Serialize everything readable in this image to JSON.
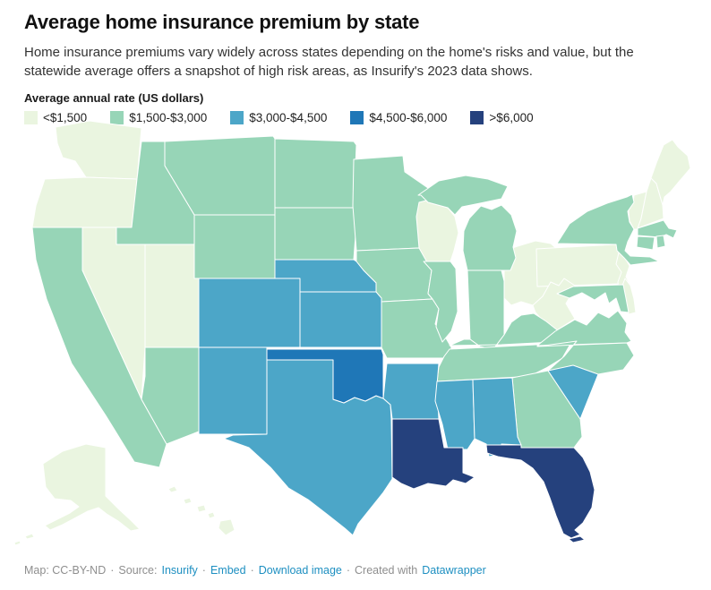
{
  "header": {
    "title": "Average home insurance premium by state",
    "subtitle": "Home insurance premiums vary widely across states depending on the home's risks and value, but the statewide average offers a snapshot of high risk areas, as Insurify's 2023 data shows."
  },
  "legend": {
    "title": "Average annual rate (US dollars)",
    "items": [
      {
        "label": "<$1,500",
        "color": "#eaf5e0"
      },
      {
        "label": "$1,500-$3,000",
        "color": "#97d5b7"
      },
      {
        "label": "$3,000-$4,500",
        "color": "#4ca6c8"
      },
      {
        "label": "$4,500-$6,000",
        "color": "#1f77b7"
      },
      {
        "label": ">$6,000",
        "color": "#25417d"
      }
    ]
  },
  "footer": {
    "segments": [
      {
        "text": "Map: CC-BY-ND",
        "link": false
      },
      {
        "text": "·",
        "link": false
      },
      {
        "text": "Source:",
        "link": false
      },
      {
        "text": "Insurify",
        "link": true
      },
      {
        "text": "·",
        "link": false
      },
      {
        "text": "Embed",
        "link": true
      },
      {
        "text": "·",
        "link": false
      },
      {
        "text": "Download image",
        "link": true
      },
      {
        "text": "·",
        "link": false
      },
      {
        "text": "Created with",
        "link": false
      },
      {
        "text": "Datawrapper",
        "link": true
      }
    ]
  },
  "chart_data": {
    "type": "choropleth-map",
    "title": "Average home insurance premium by state",
    "unit": "US dollars per year",
    "source": "Insurify 2023",
    "categories": [
      "<$1,500",
      "$1,500-$3,000",
      "$3,000-$4,500",
      "$4,500-$6,000",
      ">$6,000"
    ],
    "colors": [
      "#eaf5e0",
      "#97d5b7",
      "#4ca6c8",
      "#1f77b7",
      "#25417d"
    ],
    "states": [
      {
        "abbr": "WA",
        "name": "Washington",
        "category": "<$1,500"
      },
      {
        "abbr": "OR",
        "name": "Oregon",
        "category": "<$1,500"
      },
      {
        "abbr": "NV",
        "name": "Nevada",
        "category": "<$1,500"
      },
      {
        "abbr": "UT",
        "name": "Utah",
        "category": "<$1,500"
      },
      {
        "abbr": "WI",
        "name": "Wisconsin",
        "category": "<$1,500"
      },
      {
        "abbr": "OH",
        "name": "Ohio",
        "category": "<$1,500"
      },
      {
        "abbr": "PA",
        "name": "Pennsylvania",
        "category": "<$1,500"
      },
      {
        "abbr": "WV",
        "name": "West Virginia",
        "category": "<$1,500"
      },
      {
        "abbr": "NJ",
        "name": "New Jersey",
        "category": "<$1,500"
      },
      {
        "abbr": "DE",
        "name": "Delaware",
        "category": "<$1,500"
      },
      {
        "abbr": "VT",
        "name": "Vermont",
        "category": "<$1,500"
      },
      {
        "abbr": "NH",
        "name": "New Hampshire",
        "category": "<$1,500"
      },
      {
        "abbr": "ME",
        "name": "Maine",
        "category": "<$1,500"
      },
      {
        "abbr": "AK",
        "name": "Alaska",
        "category": "<$1,500"
      },
      {
        "abbr": "HI",
        "name": "Hawaii",
        "category": "<$1,500"
      },
      {
        "abbr": "CA",
        "name": "California",
        "category": "$1,500-$3,000"
      },
      {
        "abbr": "ID",
        "name": "Idaho",
        "category": "$1,500-$3,000"
      },
      {
        "abbr": "MT",
        "name": "Montana",
        "category": "$1,500-$3,000"
      },
      {
        "abbr": "WY",
        "name": "Wyoming",
        "category": "$1,500-$3,000"
      },
      {
        "abbr": "AZ",
        "name": "Arizona",
        "category": "$1,500-$3,000"
      },
      {
        "abbr": "ND",
        "name": "North Dakota",
        "category": "$1,500-$3,000"
      },
      {
        "abbr": "SD",
        "name": "South Dakota",
        "category": "$1,500-$3,000"
      },
      {
        "abbr": "MN",
        "name": "Minnesota",
        "category": "$1,500-$3,000"
      },
      {
        "abbr": "IA",
        "name": "Iowa",
        "category": "$1,500-$3,000"
      },
      {
        "abbr": "MO",
        "name": "Missouri",
        "category": "$1,500-$3,000"
      },
      {
        "abbr": "IL",
        "name": "Illinois",
        "category": "$1,500-$3,000"
      },
      {
        "abbr": "IN",
        "name": "Indiana",
        "category": "$1,500-$3,000"
      },
      {
        "abbr": "MI",
        "name": "Michigan",
        "category": "$1,500-$3,000"
      },
      {
        "abbr": "KY",
        "name": "Kentucky",
        "category": "$1,500-$3,000"
      },
      {
        "abbr": "TN",
        "name": "Tennessee",
        "category": "$1,500-$3,000"
      },
      {
        "abbr": "VA",
        "name": "Virginia",
        "category": "$1,500-$3,000"
      },
      {
        "abbr": "NC",
        "name": "North Carolina",
        "category": "$1,500-$3,000"
      },
      {
        "abbr": "GA",
        "name": "Georgia",
        "category": "$1,500-$3,000"
      },
      {
        "abbr": "NY",
        "name": "New York",
        "category": "$1,500-$3,000"
      },
      {
        "abbr": "MA",
        "name": "Massachusetts",
        "category": "$1,500-$3,000"
      },
      {
        "abbr": "CT",
        "name": "Connecticut",
        "category": "$1,500-$3,000"
      },
      {
        "abbr": "RI",
        "name": "Rhode Island",
        "category": "$1,500-$3,000"
      },
      {
        "abbr": "MD",
        "name": "Maryland",
        "category": "$1,500-$3,000"
      },
      {
        "abbr": "CO",
        "name": "Colorado",
        "category": "$3,000-$4,500"
      },
      {
        "abbr": "NE",
        "name": "Nebraska",
        "category": "$3,000-$4,500"
      },
      {
        "abbr": "KS",
        "name": "Kansas",
        "category": "$3,000-$4,500"
      },
      {
        "abbr": "NM",
        "name": "New Mexico",
        "category": "$3,000-$4,500"
      },
      {
        "abbr": "TX",
        "name": "Texas",
        "category": "$3,000-$4,500"
      },
      {
        "abbr": "AR",
        "name": "Arkansas",
        "category": "$3,000-$4,500"
      },
      {
        "abbr": "MS",
        "name": "Mississippi",
        "category": "$3,000-$4,500"
      },
      {
        "abbr": "AL",
        "name": "Alabama",
        "category": "$3,000-$4,500"
      },
      {
        "abbr": "SC",
        "name": "South Carolina",
        "category": "$3,000-$4,500"
      },
      {
        "abbr": "OK",
        "name": "Oklahoma",
        "category": "$4,500-$6,000"
      },
      {
        "abbr": "LA",
        "name": "Louisiana",
        "category": ">$6,000"
      },
      {
        "abbr": "FL",
        "name": "Florida",
        "category": ">$6,000"
      }
    ]
  }
}
